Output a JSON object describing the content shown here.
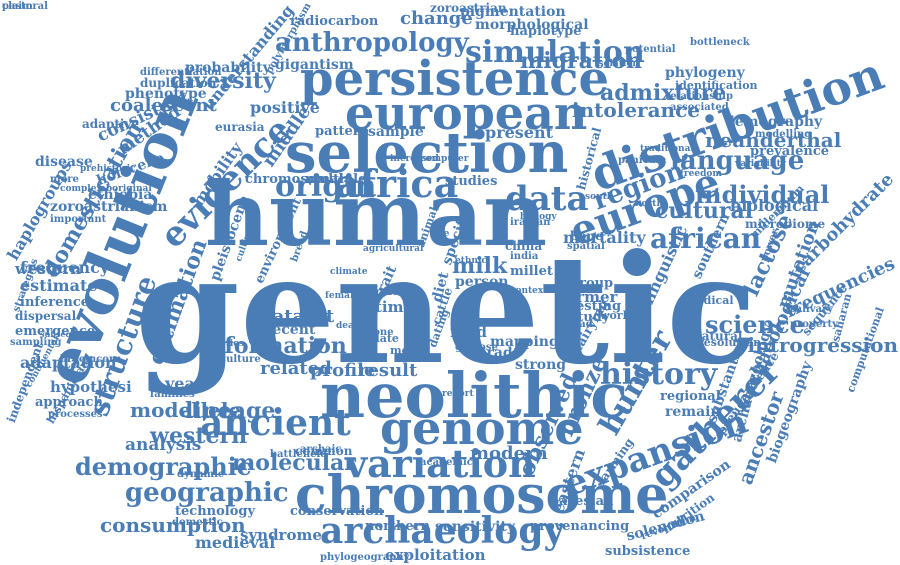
{
  "colors": {
    "word": "#4a7db5",
    "background": "#ffffff"
  },
  "words": [
    "genetic",
    "human",
    "neolithic",
    "evolution",
    "selection",
    "chromosome",
    "persistence",
    "european",
    "distribution",
    "genome",
    "europe",
    "africa",
    "variation",
    "origin",
    "archaeology",
    "ancient",
    "evidence",
    "expansion",
    "data",
    "gatherer",
    "hunter",
    "simulation",
    "anthropology",
    "structure",
    "history",
    "african",
    "language",
    "region",
    "cultural",
    "science",
    "individual",
    "demographic",
    "geographic",
    "milk",
    "lactose",
    "mutation",
    "carbohydrate",
    "frequencies",
    "introgression",
    "admixture",
    "diversity",
    "migration",
    "neanderthal",
    "intolerance",
    "present",
    "sample",
    "pattern",
    "dataset",
    "recent",
    "related",
    "profile",
    "result",
    "year",
    "lineage",
    "allele",
    "model",
    "western",
    "analysis",
    "molecular",
    "modern",
    "common",
    "observed",
    "bronze",
    "eastern",
    "ancestor",
    "biogeography",
    "archaeological",
    "solenodon",
    "comparison",
    "subsistence",
    "provenancing",
    "sensitivity",
    "northern",
    "syndrome",
    "technology",
    "conservation",
    "medieval",
    "phylogeography",
    "exploitation",
    "domestication",
    "frequency",
    "estimate",
    "inference",
    "dispersal",
    "emergence",
    "adaptation",
    "hypothesi",
    "approach",
    "information",
    "middle",
    "mobility",
    "method",
    "consistent",
    "coalescent",
    "phenotype",
    "duplication",
    "probability",
    "gigantism",
    "positive",
    "change",
    "radiocarbon",
    "pigmentation",
    "morphological",
    "haplotype",
    "zoroastrian",
    "understanding",
    "polymorphism",
    "differentiation",
    "phylogeny",
    "identification",
    "demography",
    "prevalence",
    "modelling",
    "biological",
    "microbiome",
    "historical",
    "mortality",
    "group",
    "farmer",
    "testing",
    "study",
    "natural",
    "remain",
    "regional",
    "sequence",
    "saharan",
    "computational",
    "archaeozoology",
    "pseudoscience",
    "substantial",
    "linguistic",
    "southern",
    "bayesian",
    "farming",
    "nutrition",
    "revolution",
    "consumption",
    "haplogroups",
    "western",
    "zoroastrianism",
    "ethiopia",
    "holocene",
    "disease",
    "adaptive",
    "estimation",
    "independent",
    "broomcorn",
    "hispaniolan",
    "strategies",
    "pleistocene",
    "environment",
    "culture",
    "families",
    "archaic",
    "battlefield",
    "dynamic",
    "domestic",
    "academic",
    "chromosomal",
    "multiple",
    "studies",
    "mapping",
    "strong",
    "dairying",
    "spread",
    "glucose",
    "specific",
    "person",
    "diet",
    "trait",
    "time",
    "food",
    "date",
    "most",
    "millet",
    "dating",
    "cattle",
    "scale",
    "stone",
    "china",
    "india",
    "bone",
    "spatial",
    "iranian",
    "biology",
    "context",
    "world",
    "trade",
    "eurasia",
    "mòre",
    "complex",
    "aboriginal",
    "important",
    "sampling",
    "processes",
    "continental",
    "subsequent",
    "prehistoric",
    "bottleneck",
    "potential",
    "associated",
    "relationship",
    "panicum",
    "traditional",
    "freedom",
    "variability",
    "isolation",
    "societies",
    "cultivator",
    "breed",
    "animal",
    "agricultural",
    "death",
    "report",
    "rice",
    "south",
    "north",
    "medical",
    "power",
    "salivary",
    "property",
    "resolution",
    "millennium",
    "computer",
    "increased",
    "climate",
    "female",
    "ethnic",
    "claim",
    "pastoral"
  ]
}
